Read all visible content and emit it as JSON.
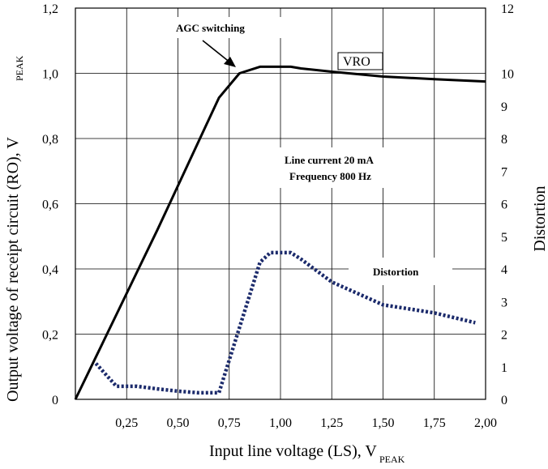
{
  "chart_data": {
    "type": "line",
    "xlabel": "Input line voltage (LS), V",
    "xlabel_sub": "PEAK",
    "ylabel": "Output voltage of receipt circuit (RO), V",
    "ylabel_sub": "PEAK",
    "y2label": "Distortion",
    "xlim": [
      0,
      2.0
    ],
    "ylim": [
      0,
      1.2
    ],
    "y2lim": [
      0,
      12
    ],
    "grid": true,
    "x_ticks": [
      {
        "value": 0.25,
        "label": "0,25"
      },
      {
        "value": 0.5,
        "label": "0,50"
      },
      {
        "value": 0.75,
        "label": "0,75"
      },
      {
        "value": 1.0,
        "label": "1,00"
      },
      {
        "value": 1.25,
        "label": "1,25"
      },
      {
        "value": 1.5,
        "label": "1,50"
      },
      {
        "value": 1.75,
        "label": "1,75"
      },
      {
        "value": 2.0,
        "label": "2,00"
      }
    ],
    "y_ticks": [
      {
        "value": 0,
        "label": "0"
      },
      {
        "value": 0.2,
        "label": "0,2"
      },
      {
        "value": 0.4,
        "label": "0,4"
      },
      {
        "value": 0.6,
        "label": "0,6"
      },
      {
        "value": 0.8,
        "label": "0,8"
      },
      {
        "value": 1.0,
        "label": "1,0"
      },
      {
        "value": 1.2,
        "label": "1,2"
      }
    ],
    "y2_ticks": [
      {
        "value": 0,
        "label": "0"
      },
      {
        "value": 1,
        "label": "1"
      },
      {
        "value": 2,
        "label": "2"
      },
      {
        "value": 3,
        "label": "3"
      },
      {
        "value": 4,
        "label": "4"
      },
      {
        "value": 5,
        "label": "5"
      },
      {
        "value": 6,
        "label": "6"
      },
      {
        "value": 7,
        "label": "7"
      },
      {
        "value": 8,
        "label": "8"
      },
      {
        "value": 9,
        "label": "9"
      },
      {
        "value": 10,
        "label": "10"
      },
      {
        "value": 12,
        "label": "12"
      }
    ],
    "series": [
      {
        "name": "VRO",
        "axis": "left",
        "style": "solid",
        "color": "#000000",
        "x": [
          0.0,
          0.1,
          0.2,
          0.3,
          0.4,
          0.5,
          0.6,
          0.7,
          0.8,
          0.9,
          1.0,
          1.05,
          1.1,
          1.25,
          1.5,
          1.75,
          2.0
        ],
        "y": [
          0.0,
          0.13,
          0.26,
          0.39,
          0.52,
          0.655,
          0.79,
          0.925,
          1.0,
          1.02,
          1.02,
          1.02,
          1.015,
          1.005,
          0.99,
          0.982,
          0.975
        ]
      },
      {
        "name": "Distortion",
        "axis": "right",
        "style": "dotted",
        "color": "#1b2a6b",
        "x": [
          0.1,
          0.2,
          0.3,
          0.4,
          0.5,
          0.6,
          0.7,
          0.8,
          0.9,
          0.95,
          1.0,
          1.05,
          1.1,
          1.25,
          1.5,
          1.75,
          1.95
        ],
        "y": [
          1.1,
          0.4,
          0.4,
          0.32,
          0.25,
          0.2,
          0.2,
          2.2,
          4.2,
          4.5,
          4.5,
          4.5,
          4.3,
          3.6,
          2.9,
          2.65,
          2.35
        ]
      }
    ],
    "annotations": [
      {
        "text": "AGC switching"
      },
      {
        "text": "VRO"
      },
      {
        "text": "Line current 20 mA"
      },
      {
        "text": "Frequency 800 Hz"
      },
      {
        "text": "Distortion"
      }
    ]
  }
}
